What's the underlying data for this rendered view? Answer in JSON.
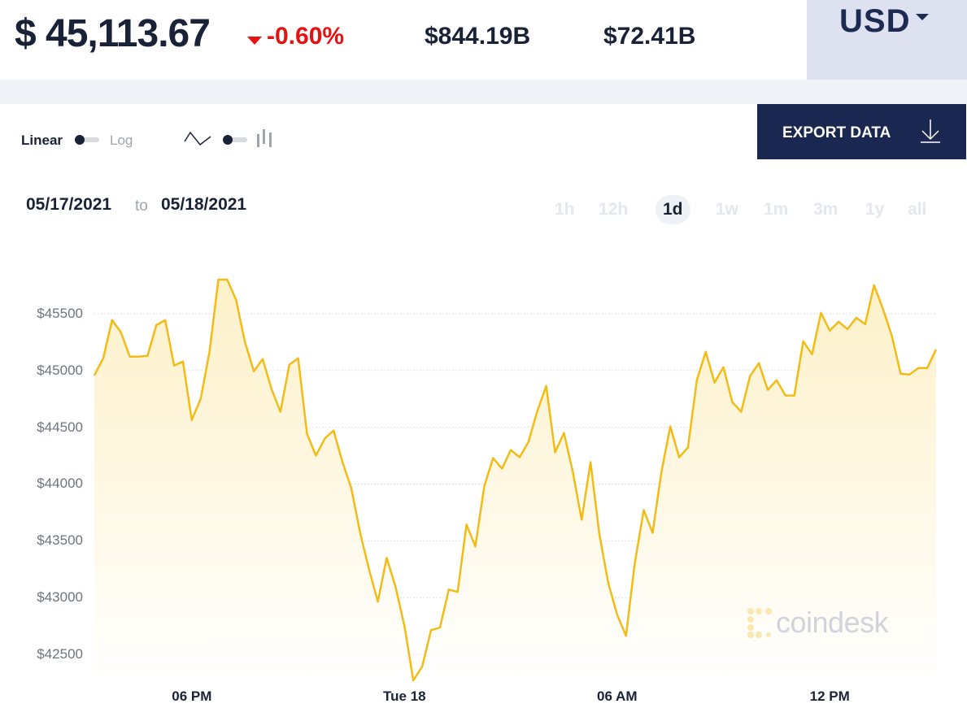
{
  "header": {
    "price": "$ 45,113.67",
    "change": "-0.60%",
    "market_cap": "$844.19B",
    "volume": "$72.41B",
    "currency": "USD",
    "change_color": "#e8110f"
  },
  "controls": {
    "scale_linear": "Linear",
    "scale_log": "Log",
    "export_label": "EXPORT DATA",
    "date_from": "05/17/2021",
    "date_sep": "to",
    "date_to": "05/18/2021",
    "ranges": [
      "1h",
      "12h",
      "1d",
      "1w",
      "1m",
      "3m",
      "1y",
      "all"
    ],
    "active_range": "1d"
  },
  "watermark": "coindesk",
  "chart_data": {
    "type": "area",
    "line_color": "#f2bb16",
    "fill_color": "#fdf0c6",
    "grid": true,
    "ylim": [
      42250,
      45900
    ],
    "y_ticks": [
      42500,
      43000,
      43500,
      44000,
      44500,
      45000,
      45500
    ],
    "y_tick_labels": [
      "$42500",
      "$43000",
      "$43500",
      "$44000",
      "$44500",
      "$45000",
      "$45500"
    ],
    "x_ticks": [
      {
        "t": "05/17 18:00",
        "label": "06 PM"
      },
      {
        "t": "05/18 00:00",
        "label": "Tue 18"
      },
      {
        "t": "05/18 06:00",
        "label": "06 AM"
      },
      {
        "t": "05/18 12:00",
        "label": "12 PM"
      }
    ],
    "x": [
      "05/17 15:15",
      "05/17 15:30",
      "05/17 15:45",
      "05/17 16:00",
      "05/17 16:15",
      "05/17 16:30",
      "05/17 16:45",
      "05/17 17:00",
      "05/17 17:15",
      "05/17 17:30",
      "05/17 17:45",
      "05/17 18:00",
      "05/17 18:15",
      "05/17 18:30",
      "05/17 18:45",
      "05/17 19:00",
      "05/17 19:15",
      "05/17 19:30",
      "05/17 19:45",
      "05/17 20:00",
      "05/17 20:15",
      "05/17 20:30",
      "05/17 20:45",
      "05/17 21:00",
      "05/17 21:15",
      "05/17 21:30",
      "05/17 21:45",
      "05/17 22:00",
      "05/17 22:15",
      "05/17 22:30",
      "05/17 22:45",
      "05/17 23:00",
      "05/17 23:15",
      "05/17 23:30",
      "05/17 23:45",
      "05/18 00:00",
      "05/18 00:15",
      "05/18 00:30",
      "05/18 00:45",
      "05/18 01:00",
      "05/18 01:15",
      "05/18 01:30",
      "05/18 01:45",
      "05/18 02:00",
      "05/18 02:15",
      "05/18 02:30",
      "05/18 02:45",
      "05/18 03:00",
      "05/18 03:15",
      "05/18 03:30",
      "05/18 03:45",
      "05/18 04:00",
      "05/18 04:15",
      "05/18 04:30",
      "05/18 04:45",
      "05/18 05:00",
      "05/18 05:15",
      "05/18 05:30",
      "05/18 05:45",
      "05/18 06:00",
      "05/18 06:15",
      "05/18 06:30",
      "05/18 06:45",
      "05/18 07:00",
      "05/18 07:15",
      "05/18 07:30",
      "05/18 07:45",
      "05/18 08:00",
      "05/18 08:15",
      "05/18 08:30",
      "05/18 08:45",
      "05/18 09:00",
      "05/18 09:15",
      "05/18 09:30",
      "05/18 09:45",
      "05/18 10:00",
      "05/18 10:15",
      "05/18 10:30",
      "05/18 10:45",
      "05/18 11:00",
      "05/18 11:15",
      "05/18 11:30",
      "05/18 11:45",
      "05/18 12:00",
      "05/18 12:15",
      "05/18 12:30",
      "05/18 12:45",
      "05/18 13:00",
      "05/18 13:15",
      "05/18 13:30",
      "05/18 13:45",
      "05/18 14:00",
      "05/18 14:15",
      "05/18 14:30",
      "05/18 14:45",
      "05/18 15:00"
    ],
    "values": [
      44957,
      45107,
      45443,
      45336,
      45121,
      45121,
      45129,
      45400,
      45443,
      45043,
      45079,
      44564,
      44750,
      45164,
      45800,
      45800,
      45621,
      45250,
      44993,
      45100,
      44836,
      44636,
      45050,
      45107,
      44443,
      44250,
      44400,
      44471,
      44193,
      43964,
      43571,
      43250,
      42964,
      43350,
      43093,
      42750,
      42271,
      42393,
      42714,
      42736,
      43071,
      43050,
      43643,
      43450,
      43979,
      44229,
      44136,
      44300,
      44236,
      44371,
      44643,
      44864,
      44279,
      44450,
      44107,
      43686,
      44193,
      43557,
      43129,
      42850,
      42664,
      43307,
      43771,
      43571,
      44107,
      44507,
      44236,
      44321,
      44914,
      45164,
      44893,
      45029,
      44721,
      44636,
      44950,
      45064,
      44829,
      44914,
      44779,
      44779,
      45257,
      45143,
      45507,
      45350,
      45429,
      45364,
      45464,
      45407,
      45750,
      45543,
      45307,
      44971,
      44964,
      45021,
      45021,
      45186
    ]
  }
}
